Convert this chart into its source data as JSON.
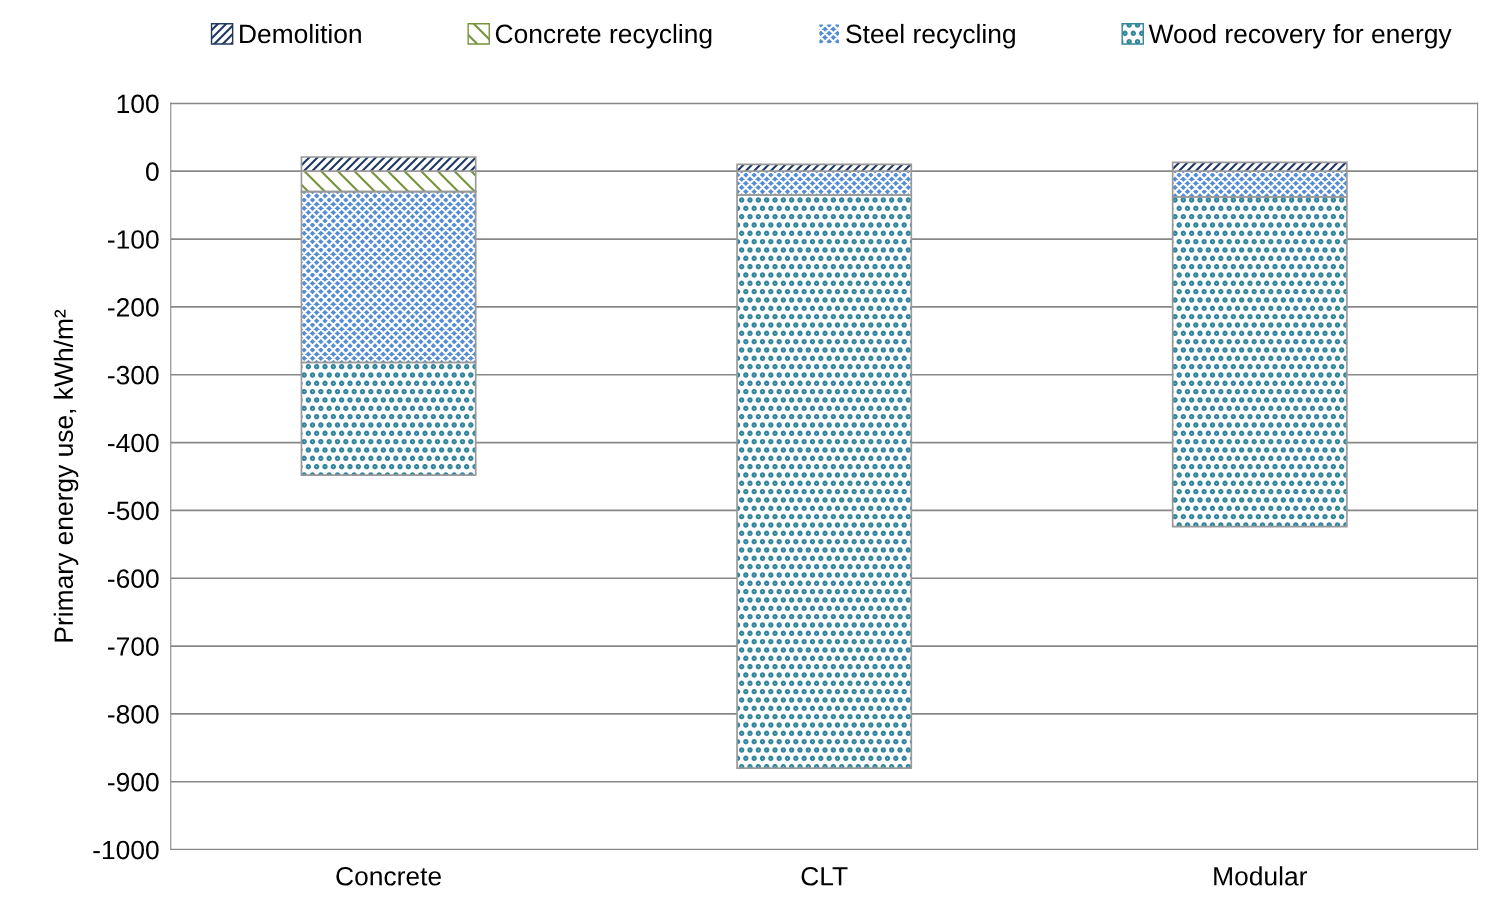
{
  "chart_data": {
    "type": "bar",
    "stacked": true,
    "ylabel": "Primary energy use, kWh/m²",
    "categories": [
      "Concrete",
      "CLT",
      "Modular"
    ],
    "series": [
      {
        "name": "Demolition",
        "color": "#1f3864",
        "values": [
          21,
          10,
          13
        ]
      },
      {
        "name": "Concrete recycling",
        "color": "#77933c",
        "values": [
          -30,
          null,
          null
        ]
      },
      {
        "name": "Steel recycling",
        "color": "#558ed5",
        "values": [
          -252,
          -35,
          -38
        ]
      },
      {
        "name": "Wood recovery for energy",
        "color": "#31859c",
        "values": [
          -166,
          -845,
          -486
        ]
      }
    ],
    "ylim": [
      -1000,
      100
    ],
    "yticks": [
      -1000,
      -900,
      -800,
      -700,
      -600,
      -500,
      -400,
      -300,
      -200,
      -100,
      0,
      100
    ],
    "grid": "y",
    "legend": "top"
  }
}
